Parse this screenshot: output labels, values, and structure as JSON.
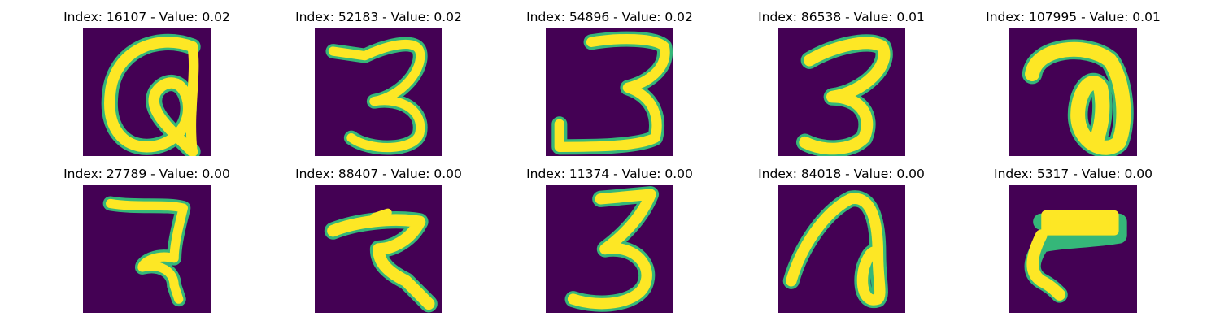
{
  "colors": {
    "background": "#440154",
    "stroke": "#fde725",
    "edge": "#35b779"
  },
  "panels": [
    {
      "title": "Index: 16107 - Value: 0.02",
      "glyph": "a-loop"
    },
    {
      "title": "Index: 52183 - Value: 0.02",
      "glyph": "three"
    },
    {
      "title": "Index: 54896 - Value: 0.02",
      "glyph": "three-wide"
    },
    {
      "title": "Index: 86538 - Value: 0.01",
      "glyph": "three-bold"
    },
    {
      "title": "Index: 107995 - Value: 0.01",
      "glyph": "curl"
    },
    {
      "title": "Index: 27789 - Value: 0.00",
      "glyph": "seven-hook"
    },
    {
      "title": "Index: 88407 - Value: 0.00",
      "glyph": "seven-z"
    },
    {
      "title": "Index: 11374 - Value: 0.00",
      "glyph": "three-tall"
    },
    {
      "title": "Index: 84018 - Value: 0.00",
      "glyph": "loop-a"
    },
    {
      "title": "Index: 5317 - Value: 0.00",
      "glyph": "seven-flag"
    }
  ]
}
